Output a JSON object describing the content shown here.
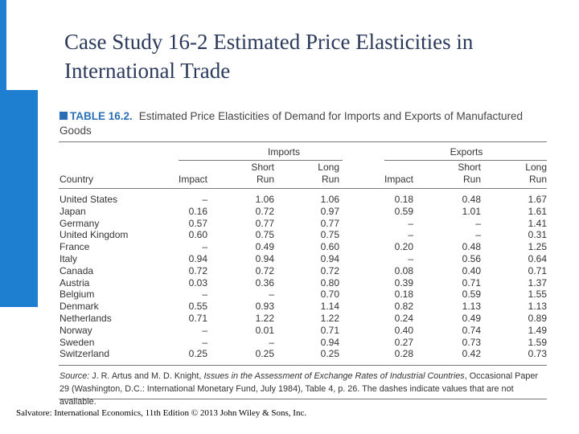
{
  "slide": {
    "title": "Case Study 16-2  Estimated Price Elasticities in International Trade",
    "footer": "Salvatore: International Economics, 11th Edition  © 2013 John Wiley & Sons, Inc."
  },
  "colors": {
    "accent_blue": "#1e7fd0",
    "title_text": "#2b3a5c",
    "table_label_blue": "#2a6fb5"
  },
  "table": {
    "label": "TABLE 16.2.",
    "caption": "Estimated Price Elasticities of Demand for Imports and Exports of Manufactured Goods",
    "group_headers": {
      "imports": "Imports",
      "exports": "Exports"
    },
    "col_headers": {
      "country": "Country",
      "impact": "Impact",
      "short_top": "Short",
      "long_top": "Long",
      "run": "Run"
    },
    "rows": [
      {
        "country": "United States",
        "imp_impact": "–",
        "imp_short": "1.06",
        "imp_long": "1.06",
        "exp_impact": "0.18",
        "exp_short": "0.48",
        "exp_long": "1.67"
      },
      {
        "country": "Japan",
        "imp_impact": "0.16",
        "imp_short": "0.72",
        "imp_long": "0.97",
        "exp_impact": "0.59",
        "exp_short": "1.01",
        "exp_long": "1.61"
      },
      {
        "country": "Germany",
        "imp_impact": "0.57",
        "imp_short": "0.77",
        "imp_long": "0.77",
        "exp_impact": "–",
        "exp_short": "–",
        "exp_long": "1.41"
      },
      {
        "country": "United Kingdom",
        "imp_impact": "0.60",
        "imp_short": "0.75",
        "imp_long": "0.75",
        "exp_impact": "–",
        "exp_short": "–",
        "exp_long": "0.31"
      },
      {
        "country": "France",
        "imp_impact": "–",
        "imp_short": "0.49",
        "imp_long": "0.60",
        "exp_impact": "0.20",
        "exp_short": "0.48",
        "exp_long": "1.25"
      },
      {
        "country": "Italy",
        "imp_impact": "0.94",
        "imp_short": "0.94",
        "imp_long": "0.94",
        "exp_impact": "–",
        "exp_short": "0.56",
        "exp_long": "0.64"
      },
      {
        "country": "Canada",
        "imp_impact": "0.72",
        "imp_short": "0.72",
        "imp_long": "0.72",
        "exp_impact": "0.08",
        "exp_short": "0.40",
        "exp_long": "0.71"
      },
      {
        "country": "Austria",
        "imp_impact": "0.03",
        "imp_short": "0.36",
        "imp_long": "0.80",
        "exp_impact": "0.39",
        "exp_short": "0.71",
        "exp_long": "1.37"
      },
      {
        "country": "Belgium",
        "imp_impact": "–",
        "imp_short": "–",
        "imp_long": "0.70",
        "exp_impact": "0.18",
        "exp_short": "0.59",
        "exp_long": "1.55"
      },
      {
        "country": "Denmark",
        "imp_impact": "0.55",
        "imp_short": "0.93",
        "imp_long": "1.14",
        "exp_impact": "0.82",
        "exp_short": "1.13",
        "exp_long": "1.13"
      },
      {
        "country": "Netherlands",
        "imp_impact": "0.71",
        "imp_short": "1.22",
        "imp_long": "1.22",
        "exp_impact": "0.24",
        "exp_short": "0.49",
        "exp_long": "0.89"
      },
      {
        "country": "Norway",
        "imp_impact": "–",
        "imp_short": "0.01",
        "imp_long": "0.71",
        "exp_impact": "0.40",
        "exp_short": "0.74",
        "exp_long": "1.49"
      },
      {
        "country": "Sweden",
        "imp_impact": "–",
        "imp_short": "–",
        "imp_long": "0.94",
        "exp_impact": "0.27",
        "exp_short": "0.73",
        "exp_long": "1.59"
      },
      {
        "country": "Switzerland",
        "imp_impact": "0.25",
        "imp_short": "0.25",
        "imp_long": "0.25",
        "exp_impact": "0.28",
        "exp_short": "0.42",
        "exp_long": "0.73"
      }
    ],
    "source": {
      "prefix": "Source:",
      "authors": " J. R. Artus and M. D. Knight, ",
      "work": "Issues in the Assessment of Exchange Rates of Industrial Countries",
      "rest": ", Occasional Paper 29 (Washington, D.C.: International Monetary Fund, July 1984), Table 4, p. 26. The dashes indicate values that are not available."
    }
  }
}
